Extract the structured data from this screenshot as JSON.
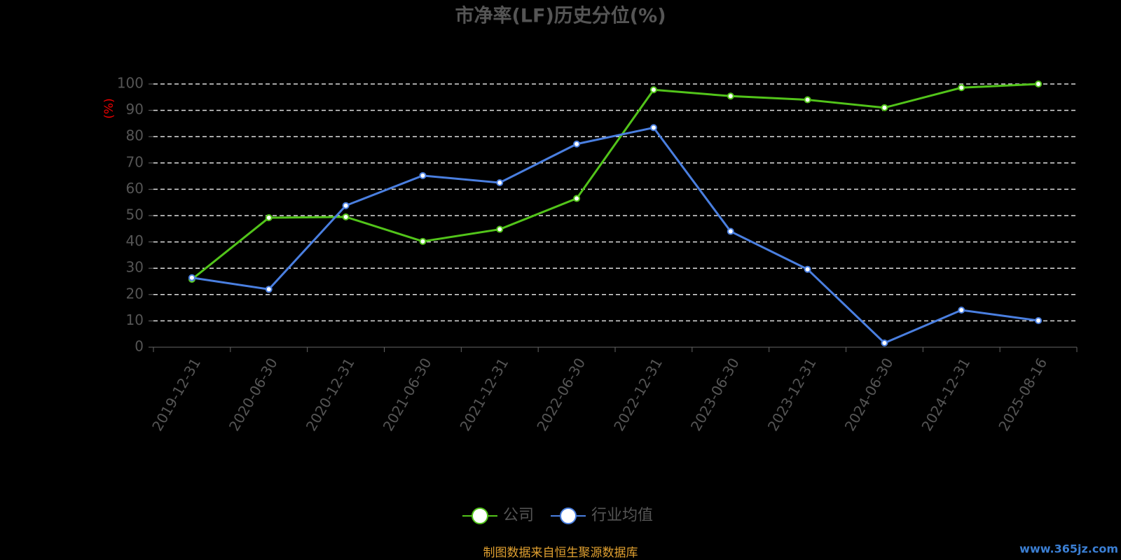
{
  "chart_data": {
    "type": "line",
    "title": "市净率(LF)历史分位(%)",
    "y_label": "(%)",
    "categories": [
      "2019-12-31",
      "2020-06-30",
      "2020-12-31",
      "2021-06-30",
      "2021-12-31",
      "2022-06-30",
      "2022-12-31",
      "2023-06-30",
      "2023-12-31",
      "2024-06-30",
      "2024-12-31",
      "2025-08-16"
    ],
    "series": [
      {
        "name": "公司",
        "color": "#52c41a",
        "values": [
          25.8,
          49.2,
          49.5,
          40.2,
          44.8,
          56.5,
          97.8,
          95.4,
          94.0,
          91.0,
          98.6,
          100
        ]
      },
      {
        "name": "行业均值",
        "color": "#4a7fe0",
        "values": [
          26.4,
          22.0,
          53.8,
          65.2,
          62.5,
          77.2,
          83.4,
          44.0,
          29.6,
          1.6,
          14.1,
          10.1
        ]
      }
    ],
    "ylim": [
      0,
      100
    ],
    "yticks": [
      0,
      10,
      20,
      30,
      40,
      50,
      60,
      70,
      80,
      90,
      100
    ],
    "grid": true,
    "source": "制图数据来自恒生聚源数据库",
    "watermark": "www.365jz.com"
  }
}
